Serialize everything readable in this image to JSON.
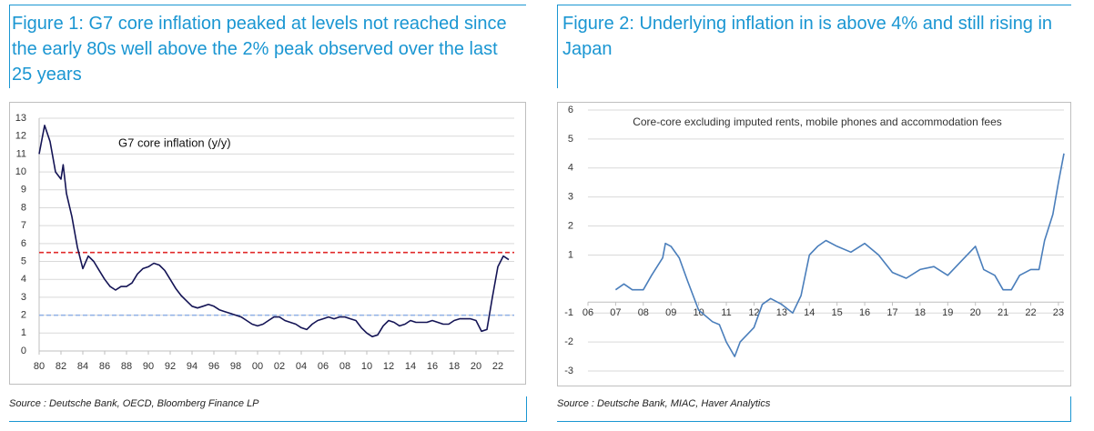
{
  "chart_data": [
    {
      "type": "line",
      "title": "Figure 1: G7 core inflation peaked at levels not reached since the early 80s well above the 2% peak observed over the last 25 years",
      "annotation": "G7 core inflation (y/y)",
      "source": "Source : Deutsche Bank, OECD, Bloomberg Finance LP",
      "xlim": [
        1980,
        2023.5
      ],
      "ylim": [
        0,
        13
      ],
      "yticks": [
        0,
        1,
        2,
        3,
        4,
        5,
        6,
        7,
        8,
        9,
        10,
        11,
        12,
        13
      ],
      "xticks": [
        {
          "value": 1980,
          "label": "80"
        },
        {
          "value": 1982,
          "label": "82"
        },
        {
          "value": 1984,
          "label": "84"
        },
        {
          "value": 1986,
          "label": "86"
        },
        {
          "value": 1988,
          "label": "88"
        },
        {
          "value": 1990,
          "label": "90"
        },
        {
          "value": 1992,
          "label": "92"
        },
        {
          "value": 1994,
          "label": "94"
        },
        {
          "value": 1996,
          "label": "96"
        },
        {
          "value": 1998,
          "label": "98"
        },
        {
          "value": 2000,
          "label": "00"
        },
        {
          "value": 2002,
          "label": "02"
        },
        {
          "value": 2004,
          "label": "04"
        },
        {
          "value": 2006,
          "label": "06"
        },
        {
          "value": 2008,
          "label": "08"
        },
        {
          "value": 2010,
          "label": "10"
        },
        {
          "value": 2012,
          "label": "12"
        },
        {
          "value": 2014,
          "label": "14"
        },
        {
          "value": 2016,
          "label": "16"
        },
        {
          "value": 2018,
          "label": "18"
        },
        {
          "value": 2020,
          "label": "20"
        },
        {
          "value": 2022,
          "label": "22"
        }
      ],
      "grid": true,
      "reference_lines": [
        {
          "value": 5.5,
          "color": "#e02a2a"
        },
        {
          "value": 2,
          "color": "#8fb0e6"
        }
      ],
      "x": [
        1980,
        1980.5,
        1981,
        1981.5,
        1982,
        1982.2,
        1982.5,
        1983,
        1983.5,
        1984,
        1984.5,
        1985,
        1985.5,
        1986,
        1986.5,
        1987,
        1987.5,
        1988,
        1988.5,
        1989,
        1989.5,
        1990,
        1990.5,
        1991,
        1991.5,
        1992,
        1992.5,
        1993,
        1993.5,
        1994,
        1994.5,
        1995,
        1995.5,
        1996,
        1996.5,
        1997,
        1997.5,
        1998,
        1998.5,
        1999,
        1999.5,
        2000,
        2000.5,
        2001,
        2001.5,
        2002,
        2002.5,
        2003,
        2003.5,
        2004,
        2004.5,
        2005,
        2005.5,
        2006,
        2006.5,
        2007,
        2007.5,
        2008,
        2008.5,
        2009,
        2009.5,
        2010,
        2010.5,
        2011,
        2011.5,
        2012,
        2012.5,
        2013,
        2013.5,
        2014,
        2014.5,
        2015,
        2015.5,
        2016,
        2016.5,
        2017,
        2017.5,
        2018,
        2018.5,
        2019,
        2019.5,
        2020,
        2020.5,
        2021,
        2021.5,
        2022,
        2022.5,
        2023
      ],
      "series": [
        {
          "name": "G7 core inflation (y/y)",
          "color": "#141455",
          "values": [
            11,
            12.6,
            11.7,
            10,
            9.6,
            10.4,
            8.8,
            7.5,
            5.8,
            4.6,
            5.3,
            5,
            4.5,
            4,
            3.6,
            3.4,
            3.6,
            3.6,
            3.8,
            4.3,
            4.6,
            4.7,
            4.9,
            4.8,
            4.5,
            4,
            3.5,
            3.1,
            2.8,
            2.5,
            2.4,
            2.5,
            2.6,
            2.5,
            2.3,
            2.2,
            2.1,
            2,
            1.9,
            1.7,
            1.5,
            1.4,
            1.5,
            1.7,
            1.9,
            1.9,
            1.7,
            1.6,
            1.5,
            1.3,
            1.2,
            1.5,
            1.7,
            1.8,
            1.9,
            1.8,
            1.9,
            1.9,
            1.8,
            1.7,
            1.3,
            1,
            0.8,
            0.9,
            1.4,
            1.7,
            1.6,
            1.4,
            1.5,
            1.7,
            1.6,
            1.6,
            1.6,
            1.7,
            1.6,
            1.5,
            1.5,
            1.7,
            1.8,
            1.8,
            1.8,
            1.7,
            1.1,
            1.2,
            3,
            4.7,
            5.3,
            5.1
          ]
        }
      ]
    },
    {
      "type": "line",
      "title": "Figure 2: Underlying inflation in is above 4% and still rising in Japan",
      "annotation": "Core-core excluding imputed rents, mobile phones and accommodation fees",
      "source": "Source : Deutsche Bank, MIAC, Haver Analytics",
      "xlim": [
        2006,
        2023.2
      ],
      "ylim": [
        -3,
        6
      ],
      "yticks": [
        6,
        5,
        4,
        3,
        2,
        1,
        -1,
        -2,
        -3
      ],
      "xticks": [
        {
          "value": 2006,
          "label": "06"
        },
        {
          "value": 2007,
          "label": "07"
        },
        {
          "value": 2008,
          "label": "08"
        },
        {
          "value": 2009,
          "label": "09"
        },
        {
          "value": 2010,
          "label": "10"
        },
        {
          "value": 2011,
          "label": "11"
        },
        {
          "value": 2012,
          "label": "12"
        },
        {
          "value": 2013,
          "label": "13"
        },
        {
          "value": 2014,
          "label": "14"
        },
        {
          "value": 2015,
          "label": "15"
        },
        {
          "value": 2016,
          "label": "16"
        },
        {
          "value": 2017,
          "label": "17"
        },
        {
          "value": 2018,
          "label": "18"
        },
        {
          "value": 2019,
          "label": "19"
        },
        {
          "value": 2020,
          "label": "20"
        },
        {
          "value": 2021,
          "label": "21"
        },
        {
          "value": 2022,
          "label": "22"
        },
        {
          "value": 2023,
          "label": "23"
        }
      ],
      "grid": true,
      "x": [
        2007,
        2007.3,
        2007.6,
        2008,
        2008.3,
        2008.7,
        2008.8,
        2009,
        2009.3,
        2009.6,
        2010,
        2010.5,
        2010.75,
        2011,
        2011.3,
        2011.5,
        2012,
        2012.3,
        2012.6,
        2013,
        2013.4,
        2013.7,
        2014,
        2014.3,
        2014.6,
        2015,
        2015.5,
        2016,
        2016.5,
        2017,
        2017.5,
        2018,
        2018.5,
        2019,
        2019.5,
        2020,
        2020.3,
        2020.7,
        2021,
        2021.3,
        2021.6,
        2022,
        2022.3,
        2022.5,
        2022.8,
        2023,
        2023.2
      ],
      "series": [
        {
          "name": "Core-core excluding imputed rents, mobile phones and accommodation fees",
          "color": "#4a7ebb",
          "values": [
            -0.2,
            0,
            -0.2,
            -0.2,
            0.3,
            0.9,
            1.4,
            1.3,
            0.9,
            0.1,
            -0.9,
            -1.3,
            -1.4,
            -2,
            -2.5,
            -2,
            -1.5,
            -0.7,
            -0.5,
            -0.7,
            -1,
            -0.4,
            1,
            1.3,
            1.5,
            1.3,
            1.1,
            1.4,
            1,
            0.4,
            0.2,
            0.5,
            0.6,
            0.3,
            0.8,
            1.3,
            0.5,
            0.3,
            -0.2,
            -0.2,
            0.3,
            0.5,
            0.5,
            1.5,
            2.4,
            3.5,
            4.5
          ]
        }
      ]
    }
  ]
}
